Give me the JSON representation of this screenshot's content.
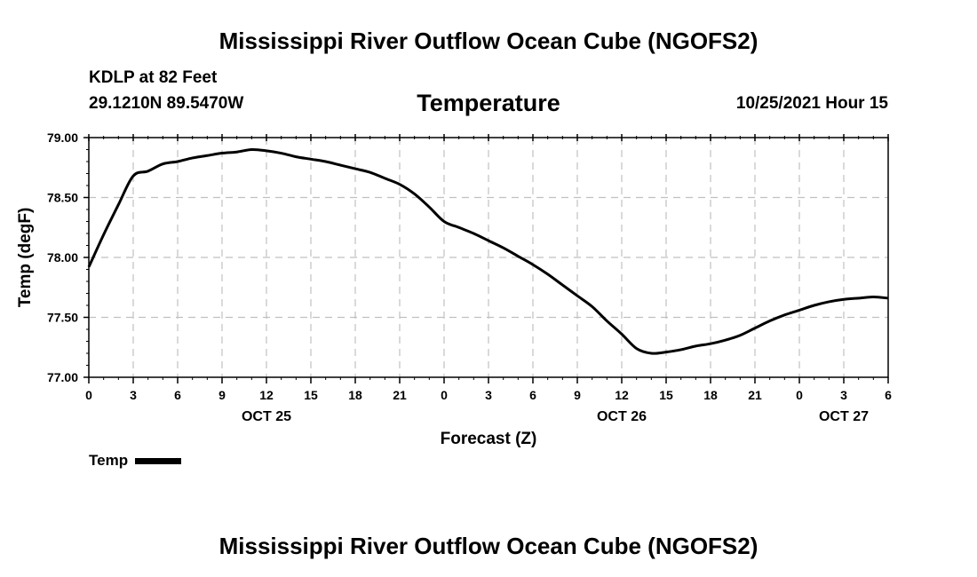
{
  "page": {
    "title_top": "Mississippi River Outflow Ocean Cube (NGOFS2)",
    "title_bottom": "Mississippi River Outflow Ocean Cube (NGOFS2)",
    "station": "KDLP at 82 Feet",
    "coords": "29.1210N  89.5470W",
    "datetime": "10/25/2021 Hour 15"
  },
  "chart_data": {
    "type": "line",
    "title": "Temperature",
    "xlabel": "Forecast (Z)",
    "ylabel": "Temp (degF)",
    "xlim": [
      0,
      54
    ],
    "ylim": [
      77.0,
      79.0
    ],
    "grid": true,
    "y_ticks": [
      77.0,
      77.5,
      78.0,
      78.5,
      79.0
    ],
    "y_tick_labels": [
      "77.00",
      "77.50",
      "78.00",
      "78.50",
      "79.00"
    ],
    "x_ticks": [
      0,
      3,
      6,
      9,
      12,
      15,
      18,
      21,
      24,
      27,
      30,
      33,
      36,
      39,
      42,
      45,
      48,
      51,
      54
    ],
    "x_tick_labels": [
      "0",
      "3",
      "6",
      "9",
      "12",
      "15",
      "18",
      "21",
      "0",
      "3",
      "6",
      "9",
      "12",
      "15",
      "18",
      "21",
      "0",
      "3",
      "6"
    ],
    "date_labels": [
      {
        "x": 12,
        "label": "OCT 25"
      },
      {
        "x": 36,
        "label": "OCT 26"
      },
      {
        "x": 51,
        "label": "OCT 27"
      }
    ],
    "legend": {
      "position": "bottom-left",
      "entries": [
        "Temp"
      ]
    },
    "series": [
      {
        "name": "Temp",
        "color": "#000000",
        "x": [
          0,
          1,
          2,
          3,
          4,
          5,
          6,
          7,
          8,
          9,
          10,
          11,
          12,
          13,
          14,
          15,
          16,
          17,
          18,
          19,
          20,
          21,
          22,
          23,
          24,
          25,
          26,
          27,
          28,
          29,
          30,
          31,
          32,
          33,
          34,
          35,
          36,
          37,
          38,
          39,
          40,
          41,
          42,
          43,
          44,
          45,
          46,
          47,
          48,
          49,
          50,
          51,
          52,
          53,
          54
        ],
        "values": [
          77.92,
          78.19,
          78.44,
          78.68,
          78.72,
          78.78,
          78.8,
          78.83,
          78.85,
          78.87,
          78.88,
          78.9,
          78.89,
          78.87,
          78.84,
          78.82,
          78.8,
          78.77,
          78.74,
          78.71,
          78.66,
          78.61,
          78.53,
          78.42,
          78.3,
          78.25,
          78.2,
          78.14,
          78.08,
          78.01,
          77.94,
          77.86,
          77.77,
          77.68,
          77.59,
          77.47,
          77.36,
          77.24,
          77.2,
          77.21,
          77.23,
          77.26,
          77.28,
          77.31,
          77.35,
          77.41,
          77.47,
          77.52,
          77.56,
          77.6,
          77.63,
          77.65,
          77.66,
          77.67,
          77.66
        ]
      }
    ]
  }
}
